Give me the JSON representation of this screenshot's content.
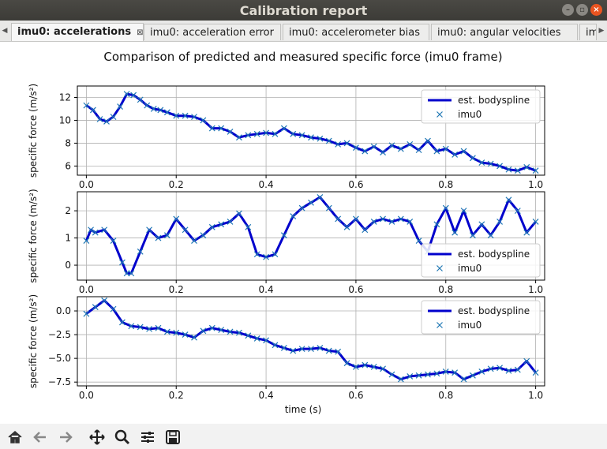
{
  "window": {
    "title": "Calibration report"
  },
  "tabs": [
    {
      "label": "imu0: accelerations",
      "active": true,
      "closable": true
    },
    {
      "label": "imu0: acceleration error"
    },
    {
      "label": "imu0: accelerometer bias"
    },
    {
      "label": "imu0: angular velocities"
    },
    {
      "label": "imu"
    }
  ],
  "toolbar": {
    "icons": [
      "home-icon",
      "back-arrow-icon",
      "forward-arrow-icon",
      "pan-icon",
      "zoom-icon",
      "configure-subplots-icon",
      "save-icon"
    ]
  },
  "colors": {
    "line": "#0000cc",
    "marker": "#1f77b4",
    "grid": "#b0b0b0"
  },
  "chart_data": {
    "type": "line",
    "title": "Comparison of predicted and measured specific force (imu0 frame)",
    "xlabel": "time (s)",
    "subplots": [
      {
        "ylabel": "specific force (m/s²)",
        "xlim": [
          -0.02,
          1.02
        ],
        "ylim": [
          5.2,
          13.0
        ],
        "xticks": [
          "0.0",
          "0.2",
          "0.4",
          "0.6",
          "0.8",
          "1.0"
        ],
        "yticks": [
          {
            "value": 6,
            "label": "6"
          },
          {
            "value": 8,
            "label": "8"
          },
          {
            "value": 10,
            "label": "10"
          },
          {
            "value": 12,
            "label": "12"
          }
        ],
        "legend": {
          "position": "top-right"
        },
        "series": [
          {
            "name": "est. bodyspline",
            "style": "line"
          },
          {
            "name": "imu0",
            "style": "x"
          }
        ],
        "x": [
          0.0,
          0.015,
          0.03,
          0.045,
          0.06,
          0.075,
          0.09,
          0.105,
          0.12,
          0.135,
          0.15,
          0.165,
          0.18,
          0.2,
          0.22,
          0.24,
          0.26,
          0.28,
          0.3,
          0.32,
          0.34,
          0.36,
          0.38,
          0.4,
          0.42,
          0.44,
          0.46,
          0.48,
          0.5,
          0.52,
          0.54,
          0.56,
          0.58,
          0.6,
          0.62,
          0.64,
          0.66,
          0.68,
          0.7,
          0.72,
          0.74,
          0.76,
          0.78,
          0.8,
          0.82,
          0.84,
          0.86,
          0.88,
          0.9,
          0.92,
          0.94,
          0.96,
          0.98,
          1.0
        ],
        "y": [
          11.3,
          10.9,
          10.1,
          9.9,
          10.3,
          11.2,
          12.3,
          12.2,
          11.8,
          11.3,
          11.0,
          10.9,
          10.7,
          10.4,
          10.4,
          10.3,
          10.0,
          9.3,
          9.3,
          9.0,
          8.5,
          8.7,
          8.8,
          8.9,
          8.8,
          9.3,
          8.8,
          8.7,
          8.5,
          8.4,
          8.2,
          7.9,
          8.0,
          7.6,
          7.3,
          7.7,
          7.2,
          7.8,
          7.5,
          7.9,
          7.4,
          8.2,
          7.3,
          7.5,
          7.0,
          7.3,
          6.7,
          6.3,
          6.2,
          6.0,
          5.7,
          5.6,
          5.9,
          5.6
        ]
      },
      {
        "ylabel": "specific force (m/s²)",
        "xlim": [
          -0.02,
          1.02
        ],
        "ylim": [
          -0.55,
          2.7
        ],
        "xticks": [
          "0.0",
          "0.2",
          "0.4",
          "0.6",
          "0.8",
          "1.0"
        ],
        "yticks": [
          {
            "value": 0,
            "label": "0"
          },
          {
            "value": 1,
            "label": "1"
          },
          {
            "value": 2,
            "label": "2"
          }
        ],
        "legend": {
          "position": "lower-right"
        },
        "series": [
          {
            "name": "est. bodyspline",
            "style": "line"
          },
          {
            "name": "imu0",
            "style": "x"
          }
        ],
        "x": [
          0.0,
          0.01,
          0.02,
          0.04,
          0.06,
          0.08,
          0.09,
          0.1,
          0.12,
          0.14,
          0.16,
          0.18,
          0.2,
          0.22,
          0.24,
          0.26,
          0.28,
          0.3,
          0.32,
          0.34,
          0.36,
          0.38,
          0.4,
          0.42,
          0.44,
          0.46,
          0.48,
          0.5,
          0.52,
          0.54,
          0.56,
          0.58,
          0.6,
          0.62,
          0.64,
          0.66,
          0.68,
          0.7,
          0.72,
          0.74,
          0.76,
          0.78,
          0.8,
          0.82,
          0.84,
          0.86,
          0.88,
          0.9,
          0.92,
          0.94,
          0.96,
          0.98,
          1.0
        ],
        "y": [
          0.9,
          1.3,
          1.2,
          1.3,
          0.9,
          0.1,
          -0.3,
          -0.3,
          0.5,
          1.3,
          1.0,
          1.1,
          1.7,
          1.3,
          0.9,
          1.1,
          1.4,
          1.5,
          1.6,
          1.9,
          1.4,
          0.4,
          0.3,
          0.4,
          1.1,
          1.8,
          2.1,
          2.3,
          2.5,
          2.1,
          1.7,
          1.4,
          1.7,
          1.3,
          1.6,
          1.7,
          1.6,
          1.7,
          1.6,
          0.9,
          0.5,
          1.5,
          2.1,
          1.2,
          2.0,
          1.1,
          1.5,
          1.1,
          1.6,
          2.4,
          2.0,
          1.2,
          1.6
        ]
      },
      {
        "ylabel": "specific force (m/s²)",
        "xlim": [
          -0.02,
          1.02
        ],
        "ylim": [
          -7.9,
          1.5
        ],
        "xticks": [
          "0.0",
          "0.2",
          "0.4",
          "0.6",
          "0.8",
          "1.0"
        ],
        "yticks": [
          {
            "value": 0.0,
            "label": "0.0"
          },
          {
            "value": -2.5,
            "label": "−2.5"
          },
          {
            "value": -5.0,
            "label": "−5.0"
          },
          {
            "value": -7.5,
            "label": "−7.5"
          }
        ],
        "legend": {
          "position": "top-right"
        },
        "series": [
          {
            "name": "est. bodyspline",
            "style": "line"
          },
          {
            "name": "imu0",
            "style": "x"
          }
        ],
        "x": [
          0.0,
          0.02,
          0.04,
          0.06,
          0.08,
          0.1,
          0.12,
          0.14,
          0.16,
          0.18,
          0.2,
          0.22,
          0.24,
          0.26,
          0.28,
          0.3,
          0.32,
          0.34,
          0.36,
          0.38,
          0.4,
          0.42,
          0.44,
          0.46,
          0.48,
          0.5,
          0.52,
          0.54,
          0.56,
          0.58,
          0.6,
          0.62,
          0.64,
          0.66,
          0.68,
          0.7,
          0.72,
          0.74,
          0.76,
          0.78,
          0.8,
          0.82,
          0.84,
          0.86,
          0.88,
          0.9,
          0.92,
          0.94,
          0.96,
          0.98,
          1.0
        ],
        "y": [
          -0.3,
          0.4,
          1.1,
          0.2,
          -1.2,
          -1.6,
          -1.7,
          -1.9,
          -1.8,
          -2.2,
          -2.3,
          -2.5,
          -2.8,
          -2.1,
          -1.8,
          -2.0,
          -2.2,
          -2.3,
          -2.6,
          -2.9,
          -3.1,
          -3.6,
          -3.9,
          -4.2,
          -4.0,
          -4.0,
          -3.9,
          -4.2,
          -4.3,
          -5.5,
          -5.9,
          -5.7,
          -5.9,
          -6.1,
          -6.7,
          -7.2,
          -6.9,
          -6.8,
          -6.7,
          -6.6,
          -6.4,
          -6.5,
          -7.2,
          -6.8,
          -6.4,
          -6.1,
          -6.0,
          -6.3,
          -6.2,
          -5.3,
          -6.5
        ]
      }
    ]
  }
}
